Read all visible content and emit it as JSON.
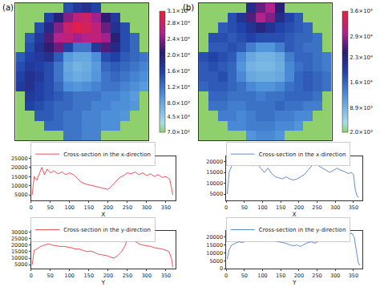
{
  "chart_data": [
    {
      "type": "heatmap",
      "title": "(a)",
      "tick_labels": false,
      "cells": [
        [
          700,
          700,
          700,
          700,
          700,
          15000,
          17000,
          18000,
          16000,
          700,
          700,
          700,
          700,
          700
        ],
        [
          700,
          700,
          700,
          16000,
          20000,
          24000,
          27000,
          28000,
          25000,
          21000,
          17000,
          700,
          700,
          700
        ],
        [
          700,
          700,
          15000,
          19000,
          24000,
          28000,
          30000,
          29000,
          27000,
          23000,
          18000,
          15000,
          700,
          700
        ],
        [
          700,
          14000,
          17000,
          22000,
          26000,
          27000,
          25000,
          26000,
          27000,
          25000,
          20000,
          15000,
          13000,
          700
        ],
        [
          700,
          15000,
          18000,
          21000,
          23000,
          16000,
          12000,
          12000,
          17000,
          22000,
          19000,
          15000,
          13000,
          700
        ],
        [
          14000,
          16000,
          17000,
          18000,
          14000,
          9000,
          8000,
          8000,
          10000,
          15000,
          16000,
          14000,
          13000,
          12000
        ],
        [
          15000,
          17000,
          16000,
          15000,
          12000,
          8000,
          7000,
          7500,
          9000,
          13000,
          14000,
          13000,
          12000,
          11000
        ],
        [
          16000,
          18000,
          17000,
          15000,
          12000,
          8500,
          7500,
          8000,
          9500,
          12000,
          13000,
          12000,
          11000,
          10000
        ],
        [
          17000,
          18000,
          16000,
          15000,
          13000,
          10000,
          9500,
          10000,
          11000,
          12000,
          12000,
          11000,
          10000,
          9000
        ],
        [
          700,
          17000,
          16000,
          15000,
          14000,
          13000,
          12000,
          12000,
          12000,
          11000,
          11000,
          10000,
          9000,
          700
        ],
        [
          700,
          16000,
          15000,
          14000,
          13000,
          13000,
          12000,
          12000,
          11000,
          11000,
          10000,
          10000,
          9500,
          700
        ],
        [
          700,
          700,
          14000,
          14000,
          13000,
          12000,
          12000,
          11000,
          11000,
          10000,
          10000,
          9500,
          700,
          700
        ],
        [
          700,
          700,
          700,
          13000,
          13000,
          12000,
          12000,
          11000,
          11000,
          10000,
          10000,
          700,
          700,
          700
        ],
        [
          700,
          700,
          700,
          700,
          700,
          12000,
          12000,
          11000,
          11000,
          700,
          700,
          700,
          700,
          700
        ]
      ],
      "color_range": [
        700,
        31000
      ],
      "color_ticks": [
        {
          "value": 700,
          "label": "7.0×10²"
        },
        {
          "value": 4500,
          "label": "4.5×10³"
        },
        {
          "value": 8000,
          "label": "8.0×10³"
        },
        {
          "value": 12000,
          "label": "1.2×10⁴"
        },
        {
          "value": 16000,
          "label": "1.6×10⁴"
        },
        {
          "value": 20000,
          "label": "2.0×10⁴"
        },
        {
          "value": 24000,
          "label": "2.4×10⁴"
        },
        {
          "value": 28000,
          "label": "2.8×10⁴"
        },
        {
          "value": 31000,
          "label": "3.1×10⁴"
        }
      ]
    },
    {
      "type": "heatmap",
      "title": "(b)",
      "tick_labels": false,
      "cells": [
        [
          2000,
          2000,
          2000,
          2000,
          2000,
          22000,
          27000,
          30000,
          24000,
          2000,
          2000,
          2000,
          2000,
          2000
        ],
        [
          2000,
          2000,
          2000,
          18000,
          21000,
          26000,
          30000,
          28000,
          22000,
          19000,
          17000,
          2000,
          2000,
          2000
        ],
        [
          2000,
          2000,
          17000,
          18000,
          19000,
          21000,
          23000,
          21000,
          19000,
          18000,
          17000,
          16000,
          2000,
          2000
        ],
        [
          2000,
          18000,
          18000,
          17000,
          18000,
          19000,
          18000,
          18000,
          18000,
          17000,
          16000,
          16000,
          15000,
          2000
        ],
        [
          2000,
          17000,
          17000,
          18000,
          17000,
          14000,
          12000,
          12000,
          14000,
          17000,
          16000,
          15000,
          15000,
          2000
        ],
        [
          18000,
          19000,
          18000,
          17000,
          13000,
          10000,
          9000,
          9000,
          10000,
          14000,
          16000,
          16000,
          15000,
          14000
        ],
        [
          17000,
          18000,
          17000,
          16000,
          12000,
          9000,
          8500,
          8500,
          9500,
          13000,
          15000,
          16000,
          15000,
          14000
        ],
        [
          17000,
          17000,
          18000,
          16000,
          13000,
          10000,
          9500,
          9500,
          10000,
          13000,
          16000,
          17000,
          16000,
          15000
        ],
        [
          16000,
          17000,
          17000,
          16000,
          15000,
          13000,
          12000,
          12000,
          13000,
          15000,
          16000,
          17000,
          16000,
          15000
        ],
        [
          2000,
          16000,
          16000,
          15000,
          15000,
          15000,
          14000,
          15000,
          15000,
          16000,
          16000,
          16000,
          15000,
          2000
        ],
        [
          2000,
          15000,
          15000,
          14000,
          14000,
          15000,
          15000,
          15000,
          16000,
          15000,
          15000,
          14000,
          14000,
          2000
        ],
        [
          2000,
          2000,
          14000,
          14000,
          13000,
          14000,
          15000,
          15000,
          14000,
          14000,
          13000,
          13000,
          2000,
          2000
        ],
        [
          2000,
          2000,
          2000,
          13000,
          13000,
          14000,
          14000,
          14000,
          13000,
          13000,
          12000,
          2000,
          2000,
          2000
        ],
        [
          2000,
          2000,
          2000,
          2000,
          2000,
          12000,
          13000,
          13000,
          12000,
          2000,
          2000,
          2000,
          2000,
          2000
        ]
      ],
      "color_range": [
        2000,
        36000
      ],
      "color_ticks": [
        {
          "value": 2000,
          "label": "2.0×10³"
        },
        {
          "value": 8900,
          "label": "8.9×10³"
        },
        {
          "value": 16000,
          "label": "1.6×10⁴"
        },
        {
          "value": 23000,
          "label": "2.3×10⁴"
        },
        {
          "value": 29000,
          "label": "2.9×10⁴"
        },
        {
          "value": 36000,
          "label": "3.6×10⁴"
        }
      ]
    },
    {
      "type": "line",
      "x_label": "X",
      "grid": false,
      "x": [
        3,
        8,
        15,
        22,
        28,
        35,
        42,
        50,
        60,
        70,
        80,
        90,
        100,
        110,
        120,
        130,
        140,
        150,
        160,
        170,
        180,
        190,
        200,
        210,
        220,
        230,
        240,
        250,
        260,
        270,
        280,
        290,
        300,
        310,
        320,
        330,
        340,
        350,
        360,
        365,
        368
      ],
      "series": [
        {
          "name": "Cross-section in the x-direction",
          "color": "#e8262d",
          "values": [
            5000,
            15000,
            13000,
            17000,
            20000,
            16000,
            19000,
            17000,
            18000,
            16500,
            17500,
            16000,
            17000,
            16000,
            14000,
            12000,
            11000,
            10500,
            10000,
            9500,
            9000,
            8500,
            8000,
            10000,
            12500,
            14500,
            15500,
            17000,
            16500,
            17500,
            16000,
            17000,
            15500,
            16500,
            15000,
            16000,
            14500,
            15000,
            13500,
            9000,
            5000
          ]
        }
      ],
      "xlim": [
        0,
        375
      ],
      "xticks": [
        0,
        50,
        100,
        150,
        200,
        250,
        300,
        350
      ],
      "ylim": [
        2000,
        26000
      ],
      "yticks": [
        5000,
        10000,
        15000,
        20000,
        25000
      ]
    },
    {
      "type": "line",
      "x_label": "Y",
      "grid": false,
      "x": [
        3,
        8,
        15,
        25,
        35,
        45,
        55,
        65,
        75,
        85,
        95,
        105,
        115,
        125,
        135,
        145,
        155,
        165,
        175,
        185,
        195,
        205,
        215,
        225,
        235,
        245,
        250,
        255,
        260,
        270,
        280,
        290,
        300,
        310,
        320,
        330,
        340,
        350,
        358,
        365,
        368
      ],
      "series": [
        {
          "name": "Cross-section in the y-direction",
          "color": "#e8262d",
          "values": [
            5000,
            16000,
            17000,
            19000,
            20000,
            21000,
            20000,
            19500,
            19000,
            19000,
            18500,
            18000,
            17000,
            17000,
            16000,
            15000,
            15500,
            14000,
            13000,
            12500,
            12000,
            11000,
            10000,
            12000,
            15000,
            20000,
            26000,
            29000,
            25000,
            23000,
            21000,
            20000,
            19500,
            19000,
            18000,
            17500,
            17000,
            16000,
            15000,
            9000,
            3000
          ]
        }
      ],
      "xlim": [
        0,
        375
      ],
      "xticks": [
        0,
        50,
        100,
        150,
        200,
        250,
        300,
        350
      ],
      "ylim": [
        2000,
        31000
      ],
      "yticks": [
        5000,
        10000,
        15000,
        20000,
        25000,
        30000
      ]
    },
    {
      "type": "line",
      "x_label": "X",
      "grid": false,
      "x": [
        3,
        8,
        15,
        25,
        35,
        45,
        55,
        65,
        75,
        85,
        95,
        105,
        115,
        125,
        135,
        145,
        155,
        165,
        175,
        185,
        195,
        205,
        215,
        225,
        235,
        245,
        255,
        265,
        275,
        285,
        295,
        305,
        315,
        325,
        335,
        345,
        350,
        355,
        360,
        365
      ],
      "series": [
        {
          "name": "Cross-section in the x-direction",
          "color": "#3a6fc4",
          "values": [
            5000,
            15000,
            18000,
            20000,
            19000,
            21000,
            20000,
            19500,
            18000,
            19000,
            17000,
            15000,
            17000,
            14500,
            13000,
            12500,
            12000,
            13000,
            12000,
            11500,
            12000,
            13000,
            14000,
            16000,
            18000,
            19500,
            18000,
            17000,
            16000,
            15000,
            16000,
            17000,
            16000,
            15500,
            14500,
            15000,
            14000,
            7000,
            4000,
            3500
          ]
        }
      ],
      "xlim": [
        0,
        375
      ],
      "xticks": [
        0,
        50,
        100,
        150,
        200,
        250,
        300,
        350
      ],
      "ylim": [
        2000,
        22500
      ],
      "yticks": [
        5000,
        10000,
        15000,
        20000
      ]
    },
    {
      "type": "line",
      "x_label": "Y",
      "grid": false,
      "x": [
        3,
        8,
        15,
        25,
        35,
        45,
        55,
        65,
        75,
        85,
        95,
        105,
        115,
        125,
        135,
        145,
        155,
        165,
        175,
        185,
        195,
        205,
        215,
        225,
        235,
        245,
        255,
        265,
        275,
        285,
        295,
        305,
        315,
        325,
        335,
        345,
        352,
        358,
        363,
        367
      ],
      "series": [
        {
          "name": "Cross-section in the y-direction",
          "color": "#3a6fc4",
          "values": [
            6000,
            12000,
            15000,
            16000,
            17000,
            16500,
            18000,
            17500,
            19000,
            18500,
            19500,
            20000,
            19000,
            18500,
            17500,
            17000,
            16500,
            16000,
            15000,
            14500,
            15000,
            14000,
            15500,
            16500,
            17000,
            16000,
            18000,
            17500,
            20000,
            18500,
            19000,
            21000,
            20000,
            22000,
            21000,
            22500,
            20000,
            12000,
            4000,
            2000
          ]
        }
      ],
      "xlim": [
        0,
        375
      ],
      "xticks": [
        0,
        50,
        100,
        150,
        200,
        250,
        300,
        350
      ],
      "ylim": [
        0,
        24000
      ],
      "yticks": [
        0,
        5000,
        10000,
        15000,
        20000
      ]
    }
  ]
}
